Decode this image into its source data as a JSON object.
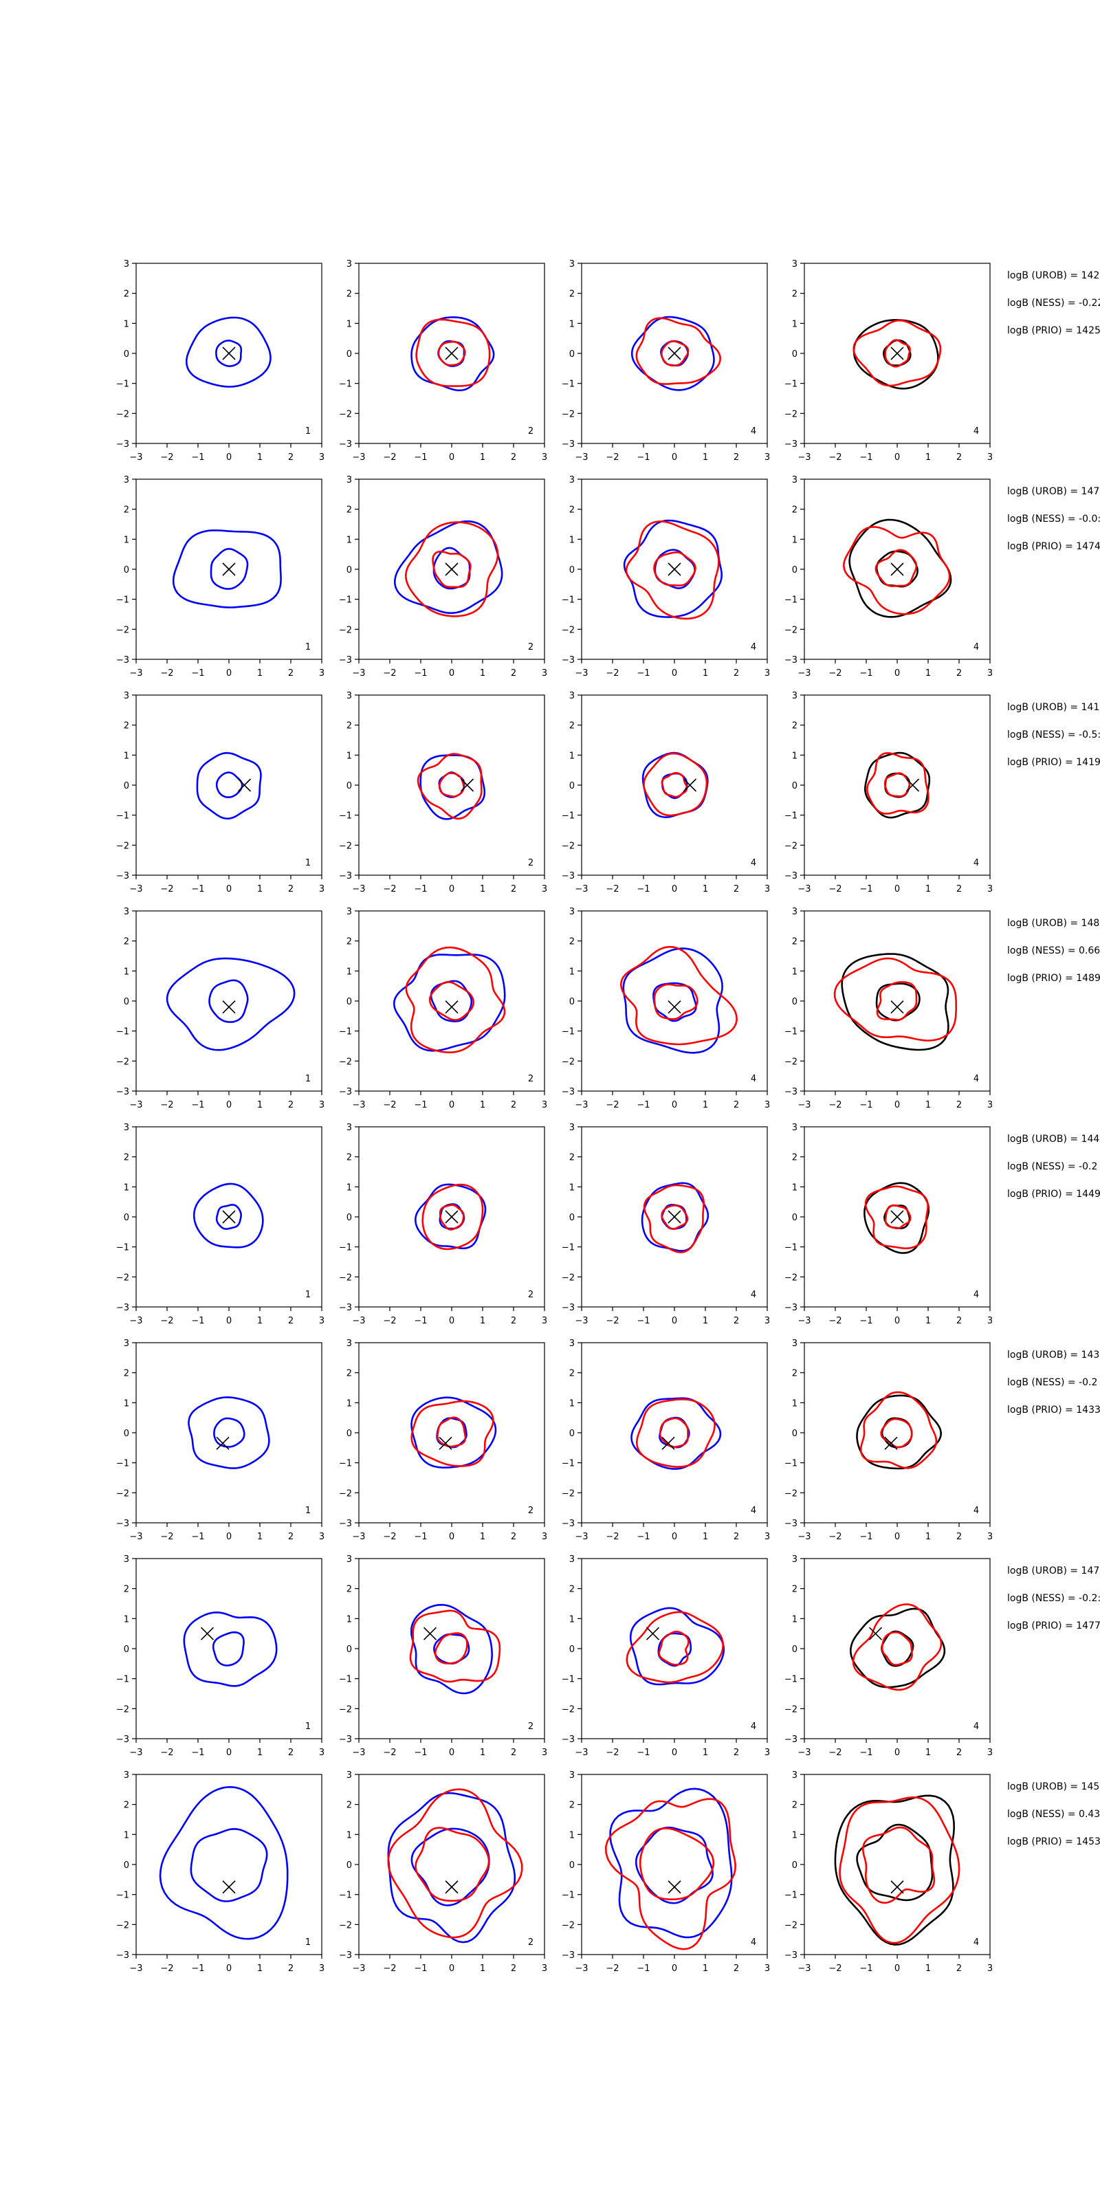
{
  "colors": {
    "blue": "#0000ff",
    "red": "#ff0000",
    "black": "#000000"
  },
  "chart_data": {
    "type": "contour-grid",
    "xlim": [
      -3,
      3
    ],
    "ylim": [
      -3,
      3
    ],
    "ticks": [
      "−3",
      "−2",
      "−1",
      "0",
      "1",
      "2",
      "3"
    ],
    "grid": false,
    "column_labels": [
      "1",
      "2",
      "4",
      "4"
    ],
    "column_colors": [
      [
        "blue"
      ],
      [
        "blue",
        "red"
      ],
      [
        "blue",
        "red"
      ],
      [
        "black",
        "red"
      ]
    ],
    "rows": [
      {
        "marker": [
          0,
          0
        ],
        "inner_r": 0.42,
        "outer_r": 1.15,
        "outer_sx": 1.15,
        "outer_sy": 1.0,
        "wobble": 0.1,
        "annotations": [
          "logB (UROB) = 142",
          "logB (NESS) = -0.22",
          "logB (PRIO) = 1425"
        ]
      },
      {
        "marker": [
          0,
          0
        ],
        "inner_r": 0.62,
        "outer_r": 1.55,
        "outer_sx": 1.05,
        "outer_sy": 0.95,
        "wobble": 0.14,
        "annotations": [
          "logB (UROB) = 147",
          "logB (NESS) = -0.0:",
          "logB (PRIO) = 1474"
        ]
      },
      {
        "marker": [
          0.5,
          0
        ],
        "inner_r": 0.4,
        "outer_r": 1.05,
        "outer_sx": 1.0,
        "outer_sy": 1.0,
        "wobble": 0.12,
        "annotations": [
          "logB (UROB) = 141",
          "logB (NESS) = -0.5:",
          "logB (PRIO) = 1419"
        ]
      },
      {
        "marker": [
          0,
          -0.2
        ],
        "inner_r": 0.65,
        "outer_r": 1.55,
        "outer_sx": 1.15,
        "outer_sy": 1.0,
        "wobble": 0.16,
        "annotations": [
          "logB (UROB) = 148",
          "logB (NESS) = 0.66",
          "logB (PRIO) = 1489"
        ]
      },
      {
        "marker": [
          0,
          0
        ],
        "inner_r": 0.4,
        "outer_r": 1.05,
        "outer_sx": 1.0,
        "outer_sy": 1.05,
        "wobble": 0.12,
        "annotations": [
          "logB (UROB) = 144",
          "logB (NESS) = -0.2",
          "logB (PRIO) = 1449"
        ]
      },
      {
        "marker": [
          -0.2,
          -0.35
        ],
        "inner_r": 0.48,
        "outer_r": 1.25,
        "outer_sx": 1.05,
        "outer_sy": 0.95,
        "wobble": 0.12,
        "annotations": [
          "logB (UROB) = 143",
          "logB (NESS) = -0.2",
          "logB (PRIO) = 1433"
        ]
      },
      {
        "marker": [
          -0.7,
          0.5
        ],
        "inner_r": 0.52,
        "outer_r": 1.35,
        "outer_sx": 1.0,
        "outer_sy": 1.0,
        "wobble": 0.15,
        "annotations": [
          "logB (UROB) = 147",
          "logB (NESS) = -0.2:",
          "logB (PRIO) = 1477"
        ]
      },
      {
        "marker": [
          0,
          -0.75
        ],
        "inner_r": 1.2,
        "outer_r": 2.3,
        "outer_sx": 0.85,
        "outer_sy": 1.05,
        "wobble": 0.22,
        "annotations": [
          "logB (UROB) = 145",
          "logB (NESS) = 0.43",
          "logB (PRIO) = 1453"
        ]
      }
    ]
  }
}
